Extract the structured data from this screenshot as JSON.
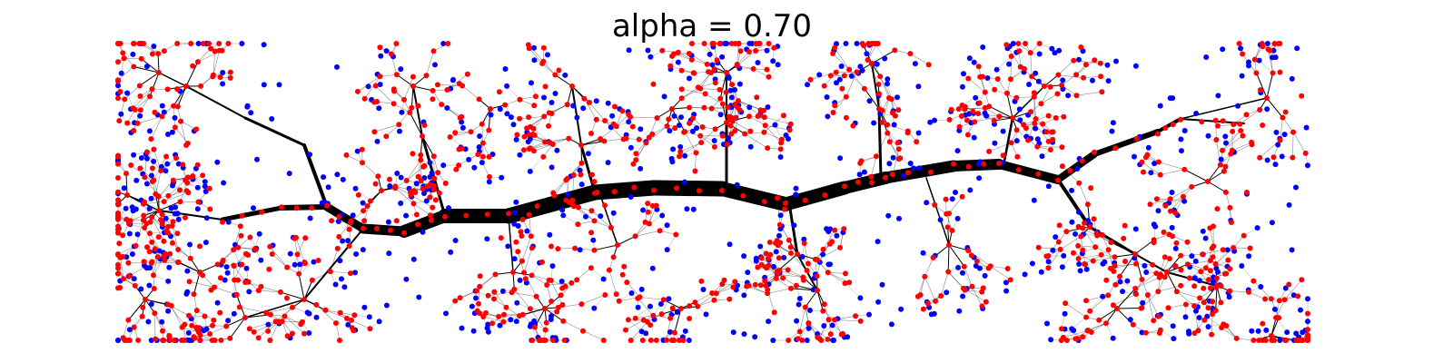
{
  "figure": {
    "title": "alpha = 0.70",
    "colors": {
      "trunk": "#000000",
      "branch_node": "#ff0000",
      "leaf_node": "#0000ff",
      "background": "#ffffff"
    }
  }
}
